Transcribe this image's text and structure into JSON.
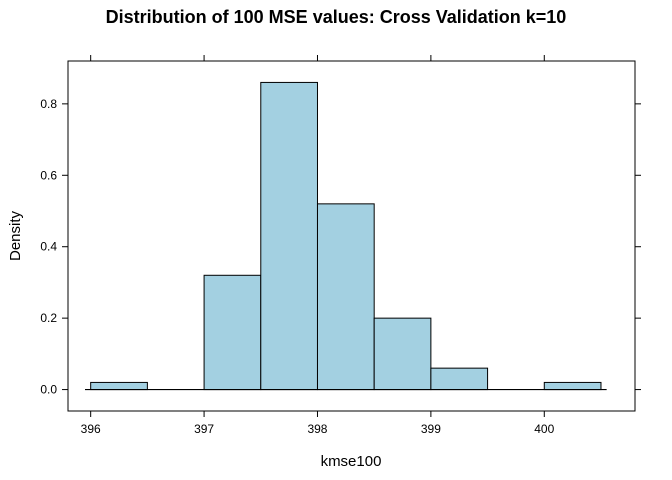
{
  "chart_data": {
    "type": "bar",
    "subtype": "histogram",
    "title": "Distribution of 100 MSE values: Cross Validation k=10",
    "xlabel": "kmse100",
    "ylabel": "Density",
    "xlim": [
      395.8,
      400.8
    ],
    "ylim": [
      -0.06,
      0.92
    ],
    "x_ticks": [
      396,
      397,
      398,
      399,
      400
    ],
    "y_ticks": [
      0.0,
      0.2,
      0.4,
      0.6,
      0.8
    ],
    "bins": [
      {
        "start": 396.0,
        "end": 396.5,
        "density": 0.02
      },
      {
        "start": 396.5,
        "end": 397.0,
        "density": 0.0
      },
      {
        "start": 397.0,
        "end": 397.5,
        "density": 0.32
      },
      {
        "start": 397.5,
        "end": 398.0,
        "density": 0.86
      },
      {
        "start": 398.0,
        "end": 398.5,
        "density": 0.52
      },
      {
        "start": 398.5,
        "end": 399.0,
        "density": 0.2
      },
      {
        "start": 399.0,
        "end": 399.5,
        "density": 0.06
      },
      {
        "start": 399.5,
        "end": 400.0,
        "density": 0.0
      },
      {
        "start": 400.0,
        "end": 400.5,
        "density": 0.02
      }
    ],
    "baseline": {
      "from": 395.95,
      "to": 400.55
    },
    "grid": false,
    "bar_color": "#a3d0e1",
    "bar_edge_color": "#000000"
  }
}
